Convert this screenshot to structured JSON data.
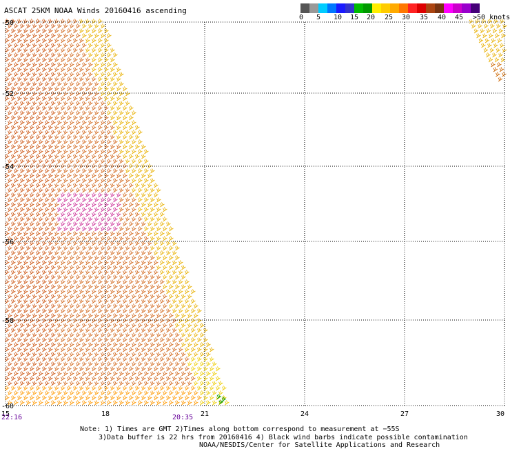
{
  "title": "ASCAT 25KM NOAA Winds 20160416 ascending",
  "scale": {
    "colors": [
      "#555555",
      "#999999",
      "#00ccff",
      "#0077ff",
      "#1a1aff",
      "#3333cc",
      "#00bb00",
      "#009900",
      "#ffee00",
      "#ffcc00",
      "#ffaa00",
      "#ff7700",
      "#ff2222",
      "#dd0000",
      "#aa4411",
      "#773311",
      "#ff00ff",
      "#cc00cc",
      "#9900cc",
      "#440077"
    ],
    "labels": [
      "0",
      "5",
      "10",
      "15",
      "20",
      "25",
      "30",
      "35",
      "40",
      "45",
      ">50 knots"
    ]
  },
  "map": {
    "lon_ticks": [
      "15",
      "18",
      "21",
      "24",
      "27",
      "30"
    ],
    "lat_ticks": [
      "-50",
      "-52",
      "-54",
      "-56",
      "-58",
      "-60"
    ],
    "lon_range": [
      15,
      30
    ],
    "lat_range": [
      -50,
      -60
    ]
  },
  "times": [
    "22:16",
    "20:35"
  ],
  "notes": [
    "Note: 1) Times are GMT 2)Times along bottom correspond to measurement at −55S",
    "3)Data buffer is 22 hrs from 20160416 4) Black wind barbs indicate possible contamination",
    "NOAA/NESDIS/Center for Satellite Applications and Research"
  ]
}
